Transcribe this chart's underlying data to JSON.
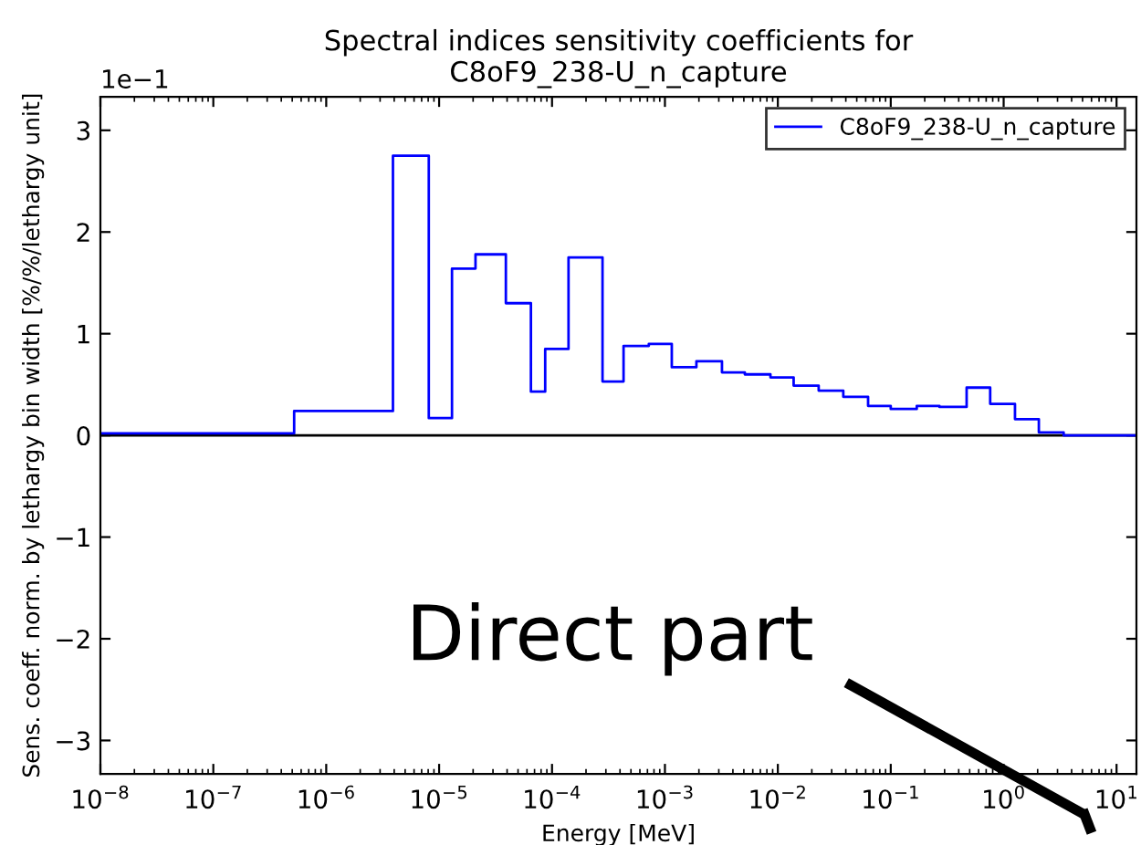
{
  "chart_data": {
    "type": "step",
    "title": "Spectral indices sensitivity coefficients for\nC8oF9_238-U_n_capture",
    "xlabel": "Energy [MeV]",
    "ylabel": "Sens. coeff. norm. by lethargy bin width [%/%/lethargy unit]",
    "series": [
      {
        "name": "C8oF9_238-U_n_capture",
        "color": "#0000ff",
        "x": [
          1e-08,
          5.2e-07,
          3.9e-06,
          8.1e-06,
          1.3e-05,
          2.1e-05,
          3.9e-05,
          6.5e-05,
          8.7e-05,
          0.00014,
          0.00028,
          0.00043,
          0.00072,
          0.00115,
          0.0019,
          0.0032,
          0.0051,
          0.0086,
          0.0138,
          0.023,
          0.038,
          0.063,
          0.1,
          0.17,
          0.27,
          0.47,
          0.76,
          1.26,
          2.05,
          3.4,
          15
        ],
        "values": [
          0.02,
          0.24,
          2.75,
          0.17,
          1.64,
          1.78,
          1.3,
          0.43,
          0.85,
          1.75,
          0.53,
          0.88,
          0.9,
          0.67,
          0.73,
          0.62,
          0.6,
          0.57,
          0.49,
          0.44,
          0.38,
          0.29,
          0.26,
          0.29,
          0.28,
          0.47,
          0.31,
          0.16,
          0.03,
          0.0,
          0.0
        ]
      }
    ],
    "log": "x",
    "xlim": [
      1e-08,
      15
    ],
    "xticks": [
      {
        "value": 1e-08,
        "label": "10$^{−8}$"
      },
      {
        "value": 1e-07,
        "label": "10$^{−7}$"
      },
      {
        "value": 1e-06,
        "label": "10$^{−6}$"
      },
      {
        "value": 1e-05,
        "label": "10$^{−5}$"
      },
      {
        "value": 0.0001,
        "label": "10$^{−4}$"
      },
      {
        "value": 0.001,
        "label": "10$^{−3}$"
      },
      {
        "value": 0.01,
        "label": "10$^{−2}$"
      },
      {
        "value": 0.1,
        "label": "10$^{−1}$"
      },
      {
        "value": 1,
        "label": "10$^{0}$"
      },
      {
        "value": 10,
        "label": "10$^{1}$"
      }
    ],
    "ylim": [
      -3.33,
      3.33
    ],
    "yticks": [
      {
        "value": -3,
        "label": "−3"
      },
      {
        "value": -2,
        "label": "−2"
      },
      {
        "value": -1,
        "label": "−1"
      },
      0,
      1,
      2,
      3
    ],
    "ref_lines": [
      {
        "axis": "y",
        "value": 0,
        "color": "#000000"
      }
    ],
    "annotations": [
      "1e−1",
      "Direct part"
    ],
    "legend": "top right",
    "grid": false
  }
}
